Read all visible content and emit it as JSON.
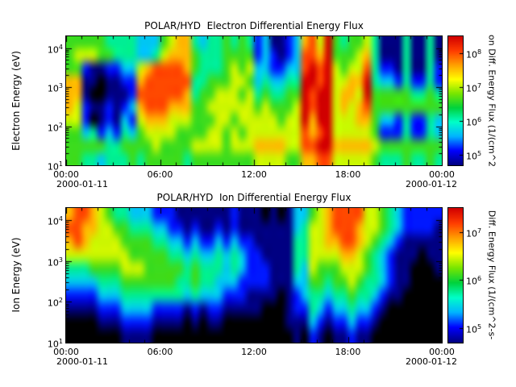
{
  "figure": {
    "background_color": "#ffffff"
  },
  "colormap": {
    "background": "#000000",
    "stops": [
      "#000082",
      "#0000ff",
      "#00b4ff",
      "#00ffc8",
      "#00d23c",
      "#78e600",
      "#ffff00",
      "#ffa000",
      "#ff3c00",
      "#d20000"
    ]
  },
  "chart_data": [
    {
      "type": "heatmap",
      "title": "POLAR/HYD  Electron Differential Energy Flux",
      "ylabel": "Electron Energy (eV)",
      "colorbar_label": "on Diff. Energy Flux (1/(cm^2",
      "x_tick_labels": [
        "00:00",
        "06:00",
        "12:00",
        "18:00",
        "00:00"
      ],
      "x_date_left": "2000-01-11",
      "x_date_right": "2000-01-12",
      "x_range_hours": [
        0,
        24
      ],
      "y_scale": "log",
      "y_log10_range": [
        1.0,
        4.3
      ],
      "y_tick_exponents": [
        1,
        2,
        3,
        4
      ],
      "colorbar_log10_range": [
        4.7,
        8.5
      ],
      "colorbar_tick_exponents": [
        5,
        6,
        7,
        8
      ],
      "grid": {
        "encoding": "Each string is one energy row, highest energy first. Each character is one 30-minute time bin from 00:00 to 24:00 UT. Digit 0 = below threshold (black); digits 1-9 map linearly to log10 differential energy flux from 4.9 to 8.3.",
        "time_bins": 48,
        "energy_bins": 10,
        "digit1_log10_flux": 4.9,
        "digit9_log10_flux": 8.3,
        "rows_high_to_low_energy": [
          "555554444333567743445454231123786954556411141141",
          "566655444334677754445555232123887955567411141141",
          "552112233678888754445656332233898965668422141142",
          "771101122788888844555665343344998966779433242242",
          "771001112888888745566656454455989967769555554454",
          "762112123788877755666666565556989967678555555555",
          "662012132677766655566566666566979966677533242243",
          "553423243566665555665656666666878966666522242243",
          "555554455556555566665666777766889977777655555555",
          "554434445455555455555555666655778866666544454454"
        ]
      }
    },
    {
      "type": "heatmap",
      "title": "POLAR/HYD  Ion Differential Energy Flux",
      "ylabel": "Ion Energy (eV)",
      "colorbar_label": "Diff. Energy Flux (1/(cm^2-s-",
      "x_tick_labels": [
        "00:00",
        "06:00",
        "12:00",
        "18:00",
        "00:00"
      ],
      "x_date_left": "2000-01-11",
      "x_date_right": "2000-01-12",
      "x_range_hours": [
        0,
        24
      ],
      "y_scale": "log",
      "y_log10_range": [
        1.0,
        4.3
      ],
      "y_tick_exponents": [
        1,
        2,
        3,
        4
      ],
      "colorbar_log10_range": [
        4.7,
        7.5
      ],
      "colorbar_tick_exponents": [
        5,
        6,
        7
      ],
      "grid": {
        "encoding": "Each string is one energy row, highest energy first. Each character is one 30-minute time bin from 00:00 to 24:00 UT. Digit 0 = below threshold (black); digits 1-9 map linearly to log10 differential energy flux from 4.9 to 7.3.",
        "time_bins": 48,
        "energy_bins": 10,
        "digit1_log10_flux": 4.9,
        "digit9_log10_flux": 7.3,
        "rows_high_to_low_energy": [
          "788765443332221111111211101013356788886654322222",
          "887766554443322121121211111113466788876654322221",
          "787666655554433232232322111114466778876543211111",
          "666666665555544343343432211114466667765432111011",
          "444555566655555454443432221114365556665432110001",
          "333344455555554454433322221113355455654432110000",
          "222233344444444343332221111012344344544321100000",
          "111122233332222121221111100012243233433210000000",
          "000011122221111010110000000011132122322100000000",
          "000000011110000000000000000001021011211000000000"
        ]
      }
    }
  ]
}
